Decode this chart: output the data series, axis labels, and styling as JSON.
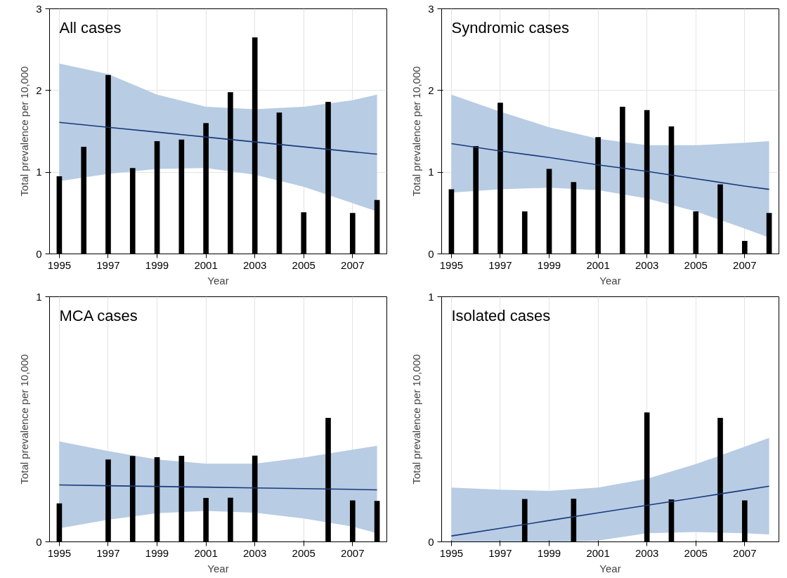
{
  "chart_data": [
    {
      "type": "bar",
      "title": "All cases",
      "xlabel": "Year",
      "ylabel": "Total prevalence per 10,000",
      "xlim": [
        1994.6,
        2008.4
      ],
      "ylim": [
        0,
        3
      ],
      "xticks": [
        1995,
        1997,
        1999,
        2001,
        2003,
        2005,
        2007
      ],
      "yticks": [
        0,
        1,
        2,
        3
      ],
      "grid": true,
      "series": [
        {
          "color": "#000000",
          "x": [
            1995,
            1996,
            1997,
            1998,
            1999,
            2000,
            2001,
            2002,
            2003,
            2004,
            2005,
            2006,
            2007,
            2008
          ],
          "values": [
            0.95,
            1.31,
            2.19,
            1.05,
            1.38,
            1.4,
            1.6,
            1.98,
            2.65,
            1.73,
            0.51,
            1.86,
            0.5,
            0.66
          ]
        },
        {
          "type": "line",
          "color": "#1a3a7a",
          "x": [
            1995,
            1997,
            1999,
            2001,
            2003,
            2005,
            2007,
            2008
          ],
          "values": [
            1.61,
            1.55,
            1.49,
            1.43,
            1.37,
            1.31,
            1.25,
            1.22
          ],
          "lower": [
            0.89,
            0.98,
            1.04,
            1.05,
            0.97,
            0.82,
            0.62,
            0.52
          ],
          "upper": [
            2.33,
            2.2,
            1.95,
            1.8,
            1.77,
            1.8,
            1.88,
            1.95
          ]
        }
      ]
    },
    {
      "type": "bar",
      "title": "Syndromic cases",
      "xlabel": "Year",
      "ylabel": "Total prevalence per 10,000",
      "xlim": [
        1994.6,
        2008.4
      ],
      "ylim": [
        0,
        3
      ],
      "xticks": [
        1995,
        1997,
        1999,
        2001,
        2003,
        2005,
        2007
      ],
      "yticks": [
        0,
        1,
        2,
        3
      ],
      "grid": true,
      "series": [
        {
          "color": "#000000",
          "x": [
            1995,
            1996,
            1997,
            1998,
            1999,
            2000,
            2001,
            2002,
            2003,
            2004,
            2005,
            2006,
            2007,
            2008
          ],
          "values": [
            0.79,
            1.32,
            1.85,
            0.52,
            1.04,
            0.88,
            1.43,
            1.8,
            1.76,
            1.56,
            0.52,
            0.85,
            0.16,
            0.5
          ]
        },
        {
          "type": "line",
          "color": "#1a3a7a",
          "x": [
            1995,
            1997,
            1999,
            2001,
            2003,
            2005,
            2007,
            2008
          ],
          "values": [
            1.35,
            1.26,
            1.18,
            1.09,
            1.01,
            0.92,
            0.83,
            0.79
          ],
          "lower": [
            0.75,
            0.79,
            0.81,
            0.78,
            0.68,
            0.52,
            0.31,
            0.2
          ],
          "upper": [
            1.95,
            1.74,
            1.55,
            1.41,
            1.33,
            1.33,
            1.36,
            1.38
          ]
        }
      ]
    },
    {
      "type": "bar",
      "title": "MCA cases",
      "xlabel": "Year",
      "ylabel": "Total prevalence per 10,000",
      "xlim": [
        1994.6,
        2008.4
      ],
      "ylim": [
        0,
        1
      ],
      "xticks": [
        1995,
        1997,
        1999,
        2001,
        2003,
        2005,
        2007
      ],
      "yticks": [
        0,
        1
      ],
      "grid": true,
      "series": [
        {
          "color": "#000000",
          "x": [
            1995,
            1997,
            1998,
            1999,
            2000,
            2001,
            2002,
            2003,
            2006,
            2007,
            2008
          ],
          "values": [
            0.157,
            0.336,
            0.35,
            0.345,
            0.351,
            0.179,
            0.18,
            0.352,
            0.506,
            0.169,
            0.167
          ]
        },
        {
          "type": "line",
          "color": "#1a3a7a",
          "x": [
            1995,
            1997,
            1999,
            2001,
            2003,
            2005,
            2007,
            2008
          ],
          "values": [
            0.232,
            0.229,
            0.226,
            0.223,
            0.22,
            0.217,
            0.214,
            0.212
          ],
          "lower": [
            0.055,
            0.09,
            0.117,
            0.126,
            0.119,
            0.095,
            0.062,
            0.035
          ],
          "upper": [
            0.41,
            0.37,
            0.336,
            0.319,
            0.319,
            0.344,
            0.376,
            0.392
          ]
        }
      ]
    },
    {
      "type": "bar",
      "title": "Isolated cases",
      "xlabel": "Year",
      "ylabel": "Total prevalence per 10,000",
      "xlim": [
        1994.6,
        2008.4
      ],
      "ylim": [
        0,
        1
      ],
      "xticks": [
        1995,
        1997,
        1999,
        2001,
        2003,
        2005,
        2007
      ],
      "yticks": [
        0,
        1
      ],
      "grid": true,
      "series": [
        {
          "color": "#000000",
          "x": [
            1998,
            2000,
            2003,
            2004,
            2006,
            2007
          ],
          "values": [
            0.175,
            0.176,
            0.528,
            0.173,
            0.506,
            0.169
          ]
        },
        {
          "type": "line",
          "color": "#1a3a7a",
          "x": [
            1995,
            1997,
            1999,
            2001,
            2003,
            2005,
            2007,
            2008
          ],
          "values": [
            0.024,
            0.055,
            0.087,
            0.118,
            0.149,
            0.18,
            0.211,
            0.227
          ],
          "lower": [
            0,
            0,
            0,
            0.005,
            0.035,
            0.04,
            0.035,
            0.03
          ],
          "upper": [
            0.221,
            0.213,
            0.208,
            0.221,
            0.257,
            0.317,
            0.388,
            0.424
          ]
        }
      ]
    }
  ]
}
